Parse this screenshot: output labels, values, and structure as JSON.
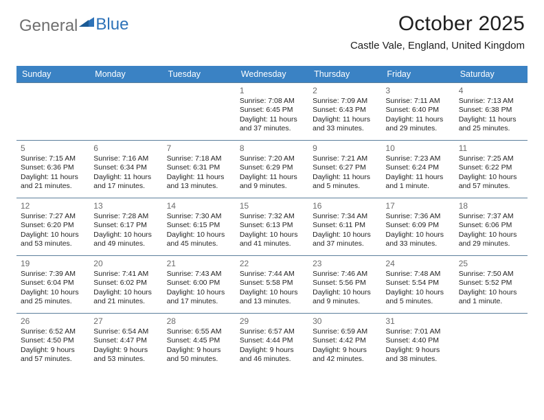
{
  "logo": {
    "text1": "General",
    "text2": "Blue"
  },
  "title": "October 2025",
  "subtitle": "Castle Vale, England, United Kingdom",
  "colors": {
    "header_bg": "#3a82c4",
    "header_fg": "#ffffff",
    "cell_border": "#5a7d9a",
    "daynum": "#6b6b6b",
    "text": "#232323",
    "logo_gray": "#6f6f6f",
    "logo_blue": "#2d72b8"
  },
  "weekdays": [
    "Sunday",
    "Monday",
    "Tuesday",
    "Wednesday",
    "Thursday",
    "Friday",
    "Saturday"
  ],
  "weeks": [
    [
      null,
      null,
      null,
      {
        "n": "1",
        "sr": "7:08 AM",
        "ss": "6:45 PM",
        "dl": "11 hours and 37 minutes."
      },
      {
        "n": "2",
        "sr": "7:09 AM",
        "ss": "6:43 PM",
        "dl": "11 hours and 33 minutes."
      },
      {
        "n": "3",
        "sr": "7:11 AM",
        "ss": "6:40 PM",
        "dl": "11 hours and 29 minutes."
      },
      {
        "n": "4",
        "sr": "7:13 AM",
        "ss": "6:38 PM",
        "dl": "11 hours and 25 minutes."
      }
    ],
    [
      {
        "n": "5",
        "sr": "7:15 AM",
        "ss": "6:36 PM",
        "dl": "11 hours and 21 minutes."
      },
      {
        "n": "6",
        "sr": "7:16 AM",
        "ss": "6:34 PM",
        "dl": "11 hours and 17 minutes."
      },
      {
        "n": "7",
        "sr": "7:18 AM",
        "ss": "6:31 PM",
        "dl": "11 hours and 13 minutes."
      },
      {
        "n": "8",
        "sr": "7:20 AM",
        "ss": "6:29 PM",
        "dl": "11 hours and 9 minutes."
      },
      {
        "n": "9",
        "sr": "7:21 AM",
        "ss": "6:27 PM",
        "dl": "11 hours and 5 minutes."
      },
      {
        "n": "10",
        "sr": "7:23 AM",
        "ss": "6:24 PM",
        "dl": "11 hours and 1 minute."
      },
      {
        "n": "11",
        "sr": "7:25 AM",
        "ss": "6:22 PM",
        "dl": "10 hours and 57 minutes."
      }
    ],
    [
      {
        "n": "12",
        "sr": "7:27 AM",
        "ss": "6:20 PM",
        "dl": "10 hours and 53 minutes."
      },
      {
        "n": "13",
        "sr": "7:28 AM",
        "ss": "6:17 PM",
        "dl": "10 hours and 49 minutes."
      },
      {
        "n": "14",
        "sr": "7:30 AM",
        "ss": "6:15 PM",
        "dl": "10 hours and 45 minutes."
      },
      {
        "n": "15",
        "sr": "7:32 AM",
        "ss": "6:13 PM",
        "dl": "10 hours and 41 minutes."
      },
      {
        "n": "16",
        "sr": "7:34 AM",
        "ss": "6:11 PM",
        "dl": "10 hours and 37 minutes."
      },
      {
        "n": "17",
        "sr": "7:36 AM",
        "ss": "6:09 PM",
        "dl": "10 hours and 33 minutes."
      },
      {
        "n": "18",
        "sr": "7:37 AM",
        "ss": "6:06 PM",
        "dl": "10 hours and 29 minutes."
      }
    ],
    [
      {
        "n": "19",
        "sr": "7:39 AM",
        "ss": "6:04 PM",
        "dl": "10 hours and 25 minutes."
      },
      {
        "n": "20",
        "sr": "7:41 AM",
        "ss": "6:02 PM",
        "dl": "10 hours and 21 minutes."
      },
      {
        "n": "21",
        "sr": "7:43 AM",
        "ss": "6:00 PM",
        "dl": "10 hours and 17 minutes."
      },
      {
        "n": "22",
        "sr": "7:44 AM",
        "ss": "5:58 PM",
        "dl": "10 hours and 13 minutes."
      },
      {
        "n": "23",
        "sr": "7:46 AM",
        "ss": "5:56 PM",
        "dl": "10 hours and 9 minutes."
      },
      {
        "n": "24",
        "sr": "7:48 AM",
        "ss": "5:54 PM",
        "dl": "10 hours and 5 minutes."
      },
      {
        "n": "25",
        "sr": "7:50 AM",
        "ss": "5:52 PM",
        "dl": "10 hours and 1 minute."
      }
    ],
    [
      {
        "n": "26",
        "sr": "6:52 AM",
        "ss": "4:50 PM",
        "dl": "9 hours and 57 minutes."
      },
      {
        "n": "27",
        "sr": "6:54 AM",
        "ss": "4:47 PM",
        "dl": "9 hours and 53 minutes."
      },
      {
        "n": "28",
        "sr": "6:55 AM",
        "ss": "4:45 PM",
        "dl": "9 hours and 50 minutes."
      },
      {
        "n": "29",
        "sr": "6:57 AM",
        "ss": "4:44 PM",
        "dl": "9 hours and 46 minutes."
      },
      {
        "n": "30",
        "sr": "6:59 AM",
        "ss": "4:42 PM",
        "dl": "9 hours and 42 minutes."
      },
      {
        "n": "31",
        "sr": "7:01 AM",
        "ss": "4:40 PM",
        "dl": "9 hours and 38 minutes."
      },
      null
    ]
  ],
  "labels": {
    "sunrise": "Sunrise:",
    "sunset": "Sunset:",
    "daylight": "Daylight:"
  }
}
